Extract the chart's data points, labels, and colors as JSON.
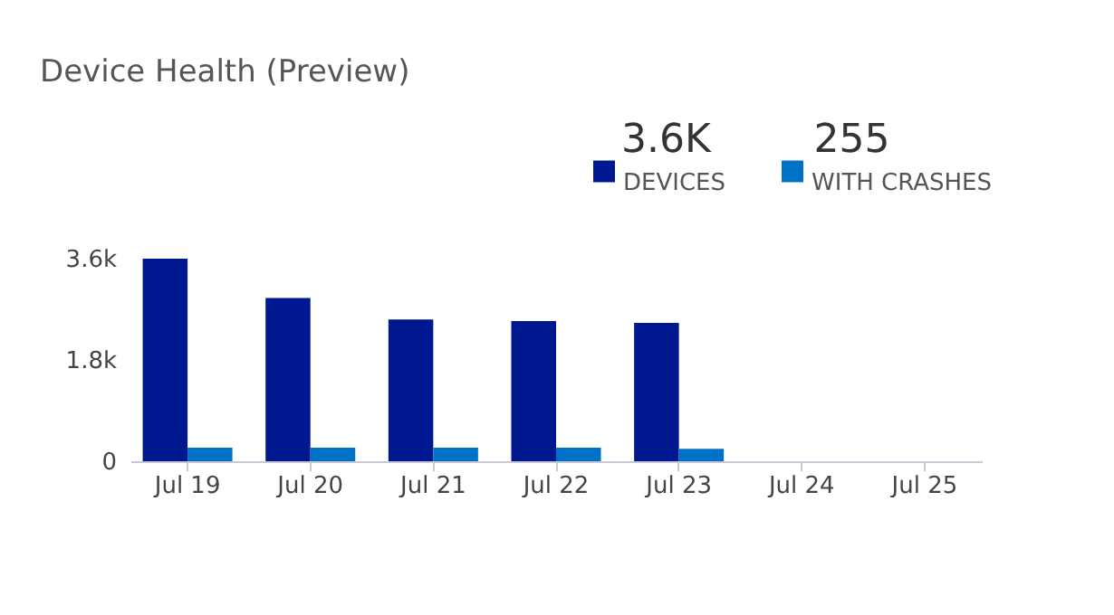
{
  "chart_data": {
    "type": "bar",
    "title": "Device Health (Preview)",
    "categories": [
      "Jul 19",
      "Jul 20",
      "Jul 21",
      "Jul 22",
      "Jul 23",
      "Jul 24",
      "Jul 25"
    ],
    "series": [
      {
        "name": "DEVICES",
        "color": "#00188f",
        "values": [
          3600,
          2900,
          2520,
          2490,
          2460,
          null,
          null
        ]
      },
      {
        "name": "WITH CRASHES",
        "color": "#0072c6",
        "values": [
          240,
          240,
          240,
          240,
          220,
          null,
          null
        ]
      }
    ],
    "annotations": [
      "3.6K",
      "255"
    ],
    "ylim": [
      0,
      3600
    ],
    "yticks": [
      0,
      {
        "value": 1800,
        "label": "1.8k"
      },
      {
        "value": 3600,
        "label": "3.6k"
      }
    ],
    "legend": "top right",
    "grid": false
  }
}
